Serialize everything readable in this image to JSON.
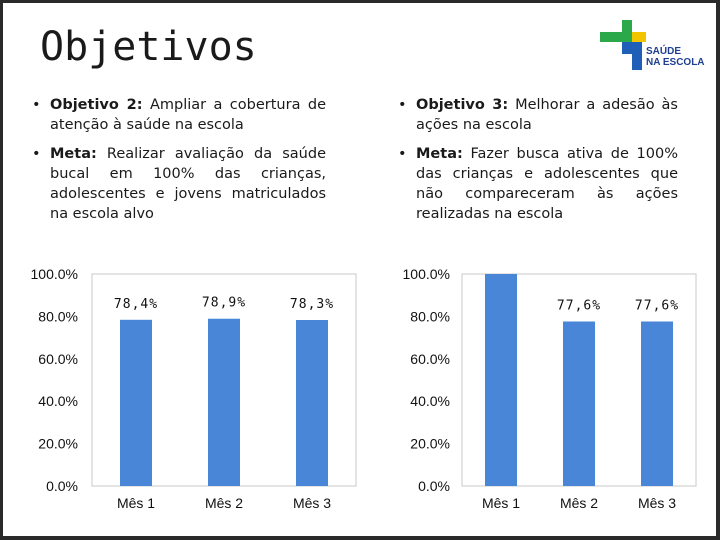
{
  "title": "Objetivos",
  "logo": {
    "line1": "SAÚDE",
    "line2": "NA ESCOLA",
    "colors": {
      "green": "#2aa84a",
      "yellow": "#f2c500",
      "blue": "#1f5fb8"
    }
  },
  "left_column": {
    "items": [
      {
        "label": "Objetivo 2:",
        "text": " Ampliar a cobertura de atenção à saúde na escola"
      },
      {
        "label": "Meta:",
        "text": " Realizar avaliação da saúde bucal em 100% das crianças, adolescentes e jovens matriculados na escola alvo"
      }
    ]
  },
  "right_column": {
    "items": [
      {
        "label": "Objetivo 3:",
        "text": " Melhorar a adesão às ações na escola"
      },
      {
        "label": "Meta:",
        "text": " Fazer busca ativa de 100% das crianças e adolescentes que não compareceram às ações realizadas na escola"
      }
    ]
  },
  "chart_data": [
    {
      "type": "bar",
      "categories": [
        "Mês 1",
        "Mês 2",
        "Mês 3"
      ],
      "values": [
        78.4,
        78.9,
        78.3
      ],
      "data_labels": [
        "78,4%",
        "78,9%",
        "78,3%"
      ],
      "ylim": [
        0,
        100
      ],
      "yticks": [
        "0.0%",
        "20.0%",
        "40.0%",
        "60.0%",
        "80.0%",
        "100.0%"
      ],
      "ytick_values": [
        0,
        20,
        40,
        60,
        80,
        100
      ],
      "bar_color": "#4a86d8",
      "grid": false
    },
    {
      "type": "bar",
      "categories": [
        "Mês 1",
        "Mês 2",
        "Mês 3"
      ],
      "values": [
        100,
        77.6,
        77.6
      ],
      "data_labels": [
        "",
        "77,6%",
        "77,6%"
      ],
      "ylim": [
        0,
        100
      ],
      "yticks": [
        "0.0%",
        "20.0%",
        "40.0%",
        "60.0%",
        "80.0%",
        "100.0%"
      ],
      "ytick_values": [
        0,
        20,
        40,
        60,
        80,
        100
      ],
      "bar_color": "#4a86d8",
      "grid": false
    }
  ]
}
